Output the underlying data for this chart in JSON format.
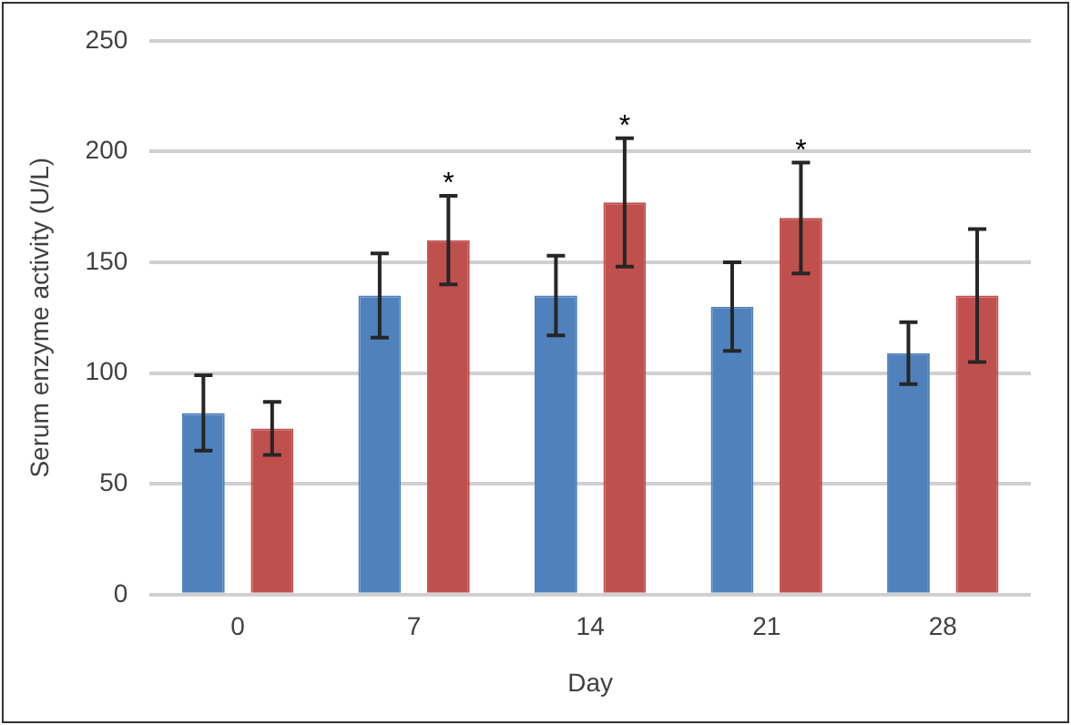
{
  "chart_data": {
    "type": "bar",
    "xlabel": "Day",
    "ylabel": "Serum enzyme activity (U/L)",
    "categories": [
      "0",
      "7",
      "14",
      "21",
      "28"
    ],
    "series": [
      {
        "color": "#4f81bd",
        "values": [
          82,
          135,
          135,
          130,
          109
        ],
        "errors": [
          17,
          19,
          18,
          20,
          14
        ]
      },
      {
        "color": "#c0504d",
        "values": [
          75,
          160,
          177,
          170,
          135
        ],
        "errors": [
          12,
          20,
          29,
          25,
          30
        ]
      }
    ],
    "ylim": [
      0,
      250
    ],
    "yticks": [
      0,
      50,
      100,
      150,
      200,
      250
    ],
    "grid": "y",
    "legend": false,
    "annotations": [
      "*",
      "*",
      "*"
    ]
  }
}
